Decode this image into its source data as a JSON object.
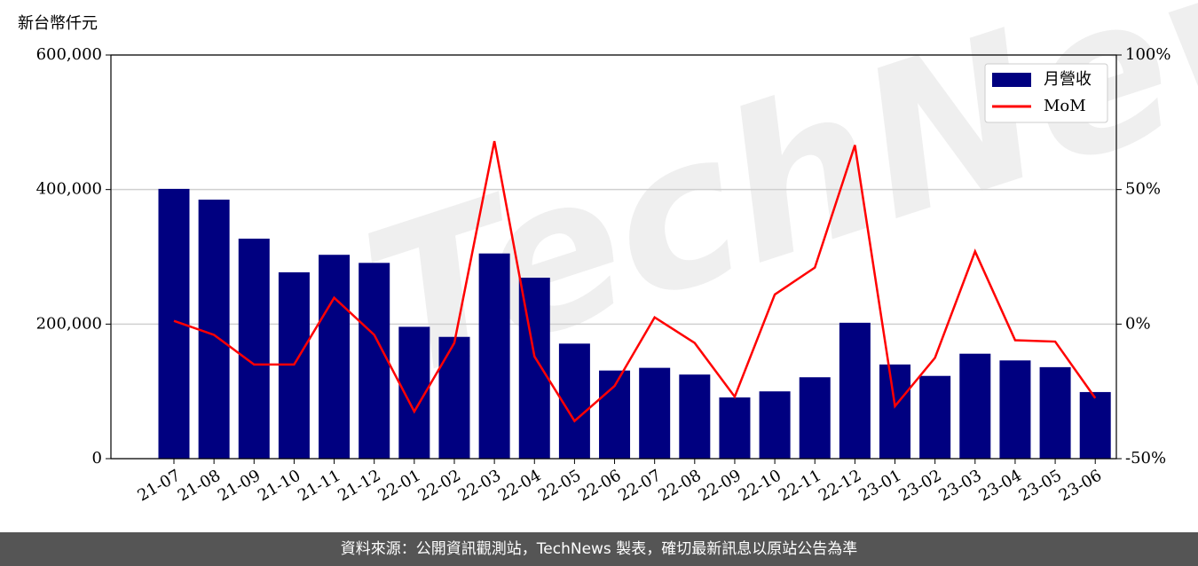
{
  "chart_data": {
    "type": "bar_line",
    "y_axis_label": "新台幣仟元",
    "watermark": "TechNews",
    "categories": [
      "21-07",
      "21-08",
      "21-09",
      "21-10",
      "21-11",
      "21-12",
      "22-01",
      "22-02",
      "22-03",
      "22-04",
      "22-05",
      "22-06",
      "22-07",
      "22-08",
      "22-09",
      "22-10",
      "22-11",
      "22-12",
      "23-01",
      "23-02",
      "23-03",
      "23-04",
      "23-05",
      "23-06"
    ],
    "series": [
      {
        "name": "月營收",
        "type": "bar",
        "color": "#000080",
        "values": [
          401000,
          385000,
          327000,
          277000,
          303000,
          291000,
          196000,
          181000,
          305000,
          269000,
          171000,
          131000,
          135000,
          125000,
          91000,
          100000,
          121000,
          202000,
          140000,
          123000,
          156000,
          146000,
          136000,
          99000
        ]
      },
      {
        "name": "MoM",
        "type": "line",
        "axis": "y2",
        "color": "#ff0000",
        "values": [
          1.2,
          -4,
          -15,
          -15,
          9.8,
          -4,
          -32.5,
          -7,
          68,
          -12,
          -36,
          -23,
          2.5,
          -7,
          -27,
          11,
          21,
          66.5,
          -30.5,
          -12.5,
          27,
          -6,
          -6.5,
          -27.5
        ]
      }
    ],
    "ylim": [
      0,
      600000
    ],
    "yticks": [
      0,
      {
        "value": 200000,
        "label": "200,000"
      },
      {
        "value": 400000,
        "label": "400,000"
      },
      {
        "value": 600000,
        "label": "600,000"
      }
    ],
    "y2lim": [
      -50,
      100
    ],
    "y2ticks": [
      {
        "value": -50,
        "label": "-50%"
      },
      {
        "value": 0,
        "label": "0%"
      },
      {
        "value": 50,
        "label": "50%"
      },
      {
        "value": 100,
        "label": "100%"
      }
    ],
    "grid": true,
    "legend": "upper right"
  },
  "footer": "資料來源：公開資訊觀測站，TechNews 製表，確切最新訊息以原站公告為準"
}
